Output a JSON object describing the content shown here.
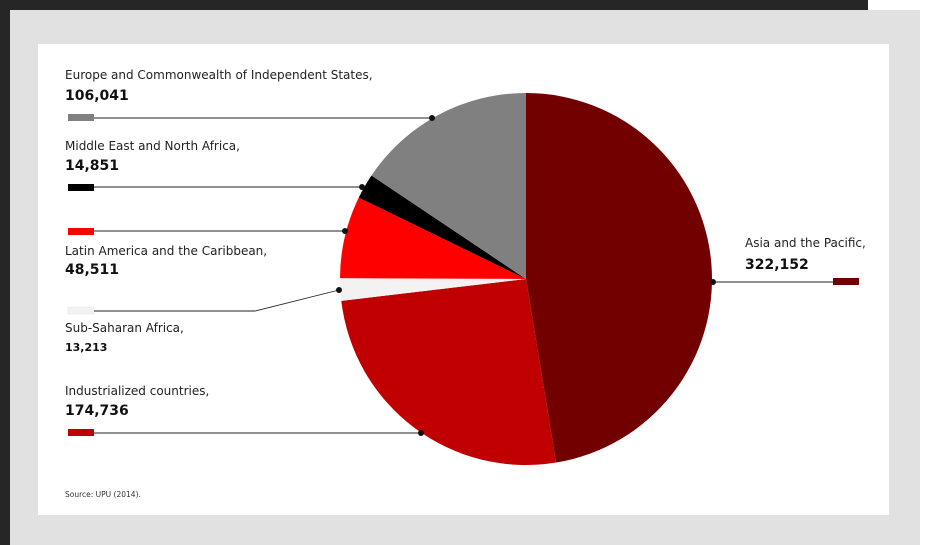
{
  "chart_data": {
    "type": "pie",
    "title": "",
    "source": "Source: UPU (2014).",
    "slices": [
      {
        "label": "Asia and the Pacific,",
        "value": 322152,
        "value_text": "322,152",
        "color": "#730000"
      },
      {
        "label": "Industrialized countries,",
        "value": 174736,
        "value_text": "174,736",
        "color": "#c00000"
      },
      {
        "label": "Sub-Saharan Africa,",
        "value": 13213,
        "value_text": "13,213",
        "color": "#f2f2f2"
      },
      {
        "label": "Latin America and the Caribbean,",
        "value": 48511,
        "value_text": "48,511",
        "color": "#ff0000"
      },
      {
        "label": "Middle East and North Africa,",
        "value": 14851,
        "value_text": "14,851",
        "color": "#000000"
      },
      {
        "label": "Europe and Commonwealth of Independent States,",
        "value": 106041,
        "value_text": "106,041",
        "color": "#808080"
      }
    ]
  }
}
